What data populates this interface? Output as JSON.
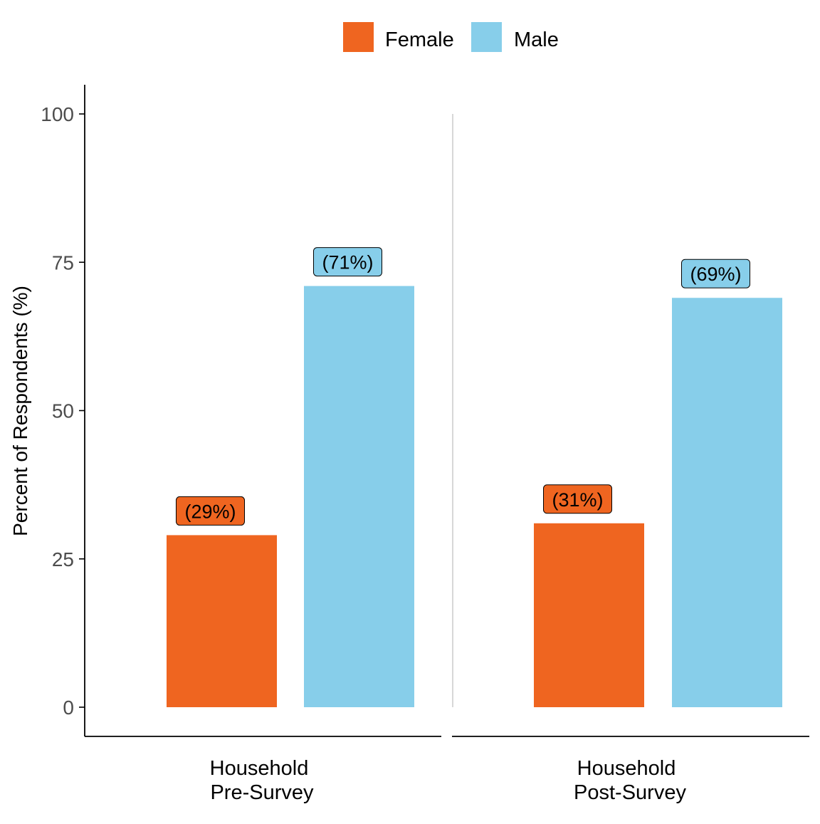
{
  "chart_data": {
    "type": "bar",
    "legend": {
      "placement": "top",
      "entries": [
        {
          "name": "Female",
          "color": "#EF6520"
        },
        {
          "name": "Male",
          "color": "#87CEEA"
        }
      ]
    },
    "ylabel": "Percent of Respondents (%)",
    "ylim": [
      0,
      105
    ],
    "yticks": [
      "0",
      "25",
      "50",
      "75",
      "100"
    ],
    "grid": false,
    "facets": [
      {
        "label_line1": "Household",
        "label_line2": "Pre-Survey",
        "bars": [
          {
            "series": "Female",
            "value": 29,
            "label": "(29%)"
          },
          {
            "series": "Male",
            "value": 71,
            "label": "(71%)"
          }
        ]
      },
      {
        "label_line1": "Household",
        "label_line2": "Post-Survey",
        "bars": [
          {
            "series": "Female",
            "value": 31,
            "label": "(31%)"
          },
          {
            "series": "Male",
            "value": 69,
            "label": "(69%)"
          }
        ]
      }
    ],
    "colors": {
      "Female": "#EF6520",
      "Male": "#87CEEA",
      "axis": "#000000",
      "tick_text": "#4D4D4D",
      "facet_divider": "#BEBEBE"
    }
  }
}
